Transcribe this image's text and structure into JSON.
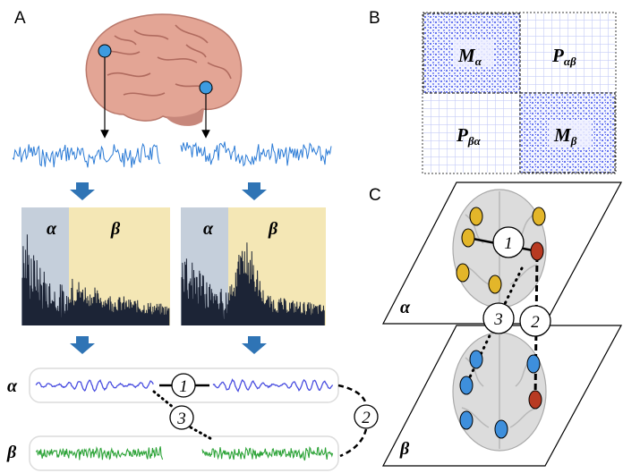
{
  "panels": {
    "a": "A",
    "b": "B",
    "c": "C"
  },
  "bands": {
    "alpha": "α",
    "beta": "β"
  },
  "matrix": {
    "top_left": {
      "main": "M",
      "sub": "α"
    },
    "top_right": {
      "main": "P",
      "sub": "αβ"
    },
    "bottom_left": {
      "main": "P",
      "sub": "βα"
    },
    "bottom_right": {
      "main": "M",
      "sub": "β"
    }
  },
  "links": {
    "one": "1",
    "two": "2",
    "three": "3"
  },
  "colors": {
    "signal": "#2b7bd6",
    "arrow": "#2f74b5",
    "alpha_band": "#c5cfdb",
    "beta_band": "#f4e7b5",
    "alpha_wave": "#4a4ee0",
    "beta_wave": "#2fa43a",
    "node_alpha": "#e3b62a",
    "node_beta": "#3e8fdc",
    "node_red": "#b83a22",
    "electrode": "#3d9be0"
  }
}
